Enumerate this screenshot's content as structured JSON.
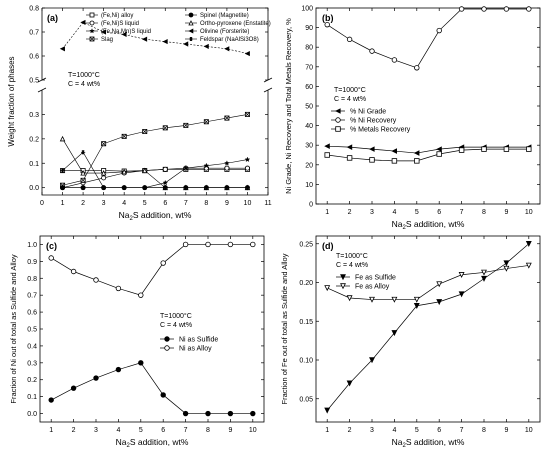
{
  "chart_data": [
    {
      "panel": "(a)",
      "type": "line",
      "x": [
        1,
        2,
        3,
        4,
        5,
        6,
        7,
        8,
        9,
        10
      ],
      "xlabel": "Na2S addition, wt%",
      "ylabel": "Weight fraction of phases",
      "xlim": [
        0,
        11
      ],
      "xticks": [
        "0",
        "1",
        "2",
        "3",
        "4",
        "5",
        "6",
        "7",
        "8",
        "9",
        "10",
        "11"
      ],
      "ylim_lower": [
        -0.03,
        0.4
      ],
      "ylim_upper": [
        0.5,
        0.8
      ],
      "yticks_lower": [
        "0.0",
        "0.1",
        "0.2",
        "0.3"
      ],
      "yticks_upper": [
        "0.5",
        "0.6",
        "0.7",
        "0.8"
      ],
      "annotation": [
        "T=1000°C",
        "C = 4 wt%"
      ],
      "series": [
        {
          "name": "(Fe,Ni) alloy",
          "marker": "open-square",
          "values": [
            0.07,
            0.07,
            0.07,
            0.068,
            0.07,
            0.075,
            0.075,
            0.075,
            0.075,
            0.075
          ]
        },
        {
          "name": "(Fe,Ni)S liquid",
          "marker": "open-circle",
          "values": [
            0.0,
            0.02,
            0.04,
            0.06,
            0.07,
            0.075,
            0.08,
            0.08,
            0.08,
            0.08
          ]
        },
        {
          "name": "(Fe,Na,Mn)S liquid",
          "marker": "filled-star",
          "values": [
            0.0,
            0.0,
            0.0,
            0.0,
            0.0,
            0.02,
            0.08,
            0.09,
            0.1,
            0.115
          ]
        },
        {
          "name": "Slag",
          "marker": "open-square-x",
          "values": [
            0.01,
            0.03,
            0.18,
            0.21,
            0.23,
            0.245,
            0.255,
            0.27,
            0.285,
            0.3
          ]
        },
        {
          "name": "Spinel (Magnetite)",
          "marker": "filled-circle",
          "values": [
            0.0,
            0.0,
            0.0,
            0.0,
            0.0,
            0.0,
            0.0,
            0.0,
            0.0,
            0.0
          ]
        },
        {
          "name": "Ortho-pyroxene (Enstatite)",
          "marker": "open-triangle",
          "values": [
            0.2,
            0.06,
            0.06,
            0.065,
            0.07,
            0.0,
            0.0,
            0.0,
            0.0,
            0.0
          ]
        },
        {
          "name": "Olivine (Forsterite)",
          "marker": "filled-left-triangle",
          "values": [
            0.63,
            0.74,
            0.7,
            0.69,
            0.67,
            0.66,
            0.65,
            0.64,
            0.63,
            0.61
          ]
        },
        {
          "name": "Feldspar (NaAlSi3O8)",
          "marker": "asterisk",
          "values": [
            0.07,
            0.145,
            0.0,
            0.0,
            0.0,
            0.0,
            0.0,
            0.0,
            0.0,
            0.0
          ]
        }
      ]
    },
    {
      "panel": "(b)",
      "type": "line",
      "x": [
        1,
        2,
        3,
        4,
        5,
        6,
        7,
        8,
        9,
        10
      ],
      "xlabel": "Na2S addition, wt%",
      "ylabel": "Ni Grade, Ni Recovery and Total Metals Recovery, %",
      "xlim": [
        0.5,
        10.5
      ],
      "ylim": [
        0,
        100
      ],
      "xticks": [
        "1",
        "2",
        "3",
        "4",
        "5",
        "6",
        "7",
        "8",
        "9",
        "10"
      ],
      "yticks": [
        "0",
        "10",
        "20",
        "30",
        "40",
        "50",
        "60",
        "70",
        "80",
        "90",
        "100"
      ],
      "annotation": [
        "T=1000°C",
        "C = 4 wt%"
      ],
      "series": [
        {
          "name": "% Ni Grade",
          "marker": "filled-left-triangle",
          "values": [
            29.5,
            29,
            28,
            27,
            26,
            28,
            29,
            29,
            29,
            29
          ]
        },
        {
          "name": "% Ni Recovery",
          "marker": "open-circle",
          "values": [
            91.5,
            84,
            78,
            73.5,
            69.5,
            88.5,
            99.5,
            99.5,
            99.5,
            99.5
          ]
        },
        {
          "name": "% Metals Recovery",
          "marker": "open-square",
          "values": [
            25,
            23.5,
            22.5,
            22,
            22,
            25.5,
            27.5,
            28,
            28,
            28
          ]
        }
      ]
    },
    {
      "panel": "(c)",
      "type": "line",
      "x": [
        1,
        2,
        3,
        4,
        5,
        6,
        7,
        8,
        9,
        10
      ],
      "xlabel": "Na2S addition, wt%",
      "ylabel": "Fraction of Ni out of total as Sulfide and Alloy",
      "xlim": [
        0.5,
        10.5
      ],
      "ylim": [
        -0.05,
        1.05
      ],
      "xticks": [
        "1",
        "2",
        "3",
        "4",
        "5",
        "6",
        "7",
        "8",
        "9",
        "10"
      ],
      "yticks": [
        "0.0",
        "0.1",
        "0.2",
        "0.3",
        "0.4",
        "0.5",
        "0.6",
        "0.7",
        "0.8",
        "0.9",
        "1.0"
      ],
      "annotation": [
        "T=1000°C",
        "C = 4 wt%"
      ],
      "series": [
        {
          "name": "Ni as Sulfide",
          "marker": "filled-circle",
          "values": [
            0.08,
            0.15,
            0.21,
            0.26,
            0.3,
            0.11,
            0.0,
            0.0,
            0.0,
            0.0
          ]
        },
        {
          "name": "Ni as Alloy",
          "marker": "open-circle",
          "values": [
            0.92,
            0.84,
            0.79,
            0.74,
            0.7,
            0.89,
            1.0,
            1.0,
            1.0,
            1.0
          ]
        }
      ]
    },
    {
      "panel": "(d)",
      "type": "line",
      "x": [
        1,
        2,
        3,
        4,
        5,
        6,
        7,
        8,
        9,
        10
      ],
      "xlabel": "Na2S addition, wt%",
      "ylabel": "Fraction of Fe out of total as Sulfide and Alloy",
      "xlim": [
        0.5,
        10.5
      ],
      "ylim": [
        0.02,
        0.26
      ],
      "xticks": [
        "1",
        "2",
        "3",
        "4",
        "5",
        "6",
        "7",
        "8",
        "9",
        "10"
      ],
      "yticks": [
        "0.05",
        "0.10",
        "0.15",
        "0.20",
        "0.25"
      ],
      "annotation": [
        "T=1000°C",
        "C = 4 wt%"
      ],
      "series": [
        {
          "name": "Fe as Sulfide",
          "marker": "filled-down-triangle",
          "values": [
            0.035,
            0.07,
            0.1,
            0.135,
            0.17,
            0.175,
            0.185,
            0.205,
            0.225,
            0.25
          ]
        },
        {
          "name": "Fe as Alloy",
          "marker": "open-down-triangle",
          "values": [
            0.193,
            0.18,
            0.178,
            0.178,
            0.178,
            0.198,
            0.21,
            0.213,
            0.218,
            0.222
          ]
        }
      ]
    }
  ]
}
